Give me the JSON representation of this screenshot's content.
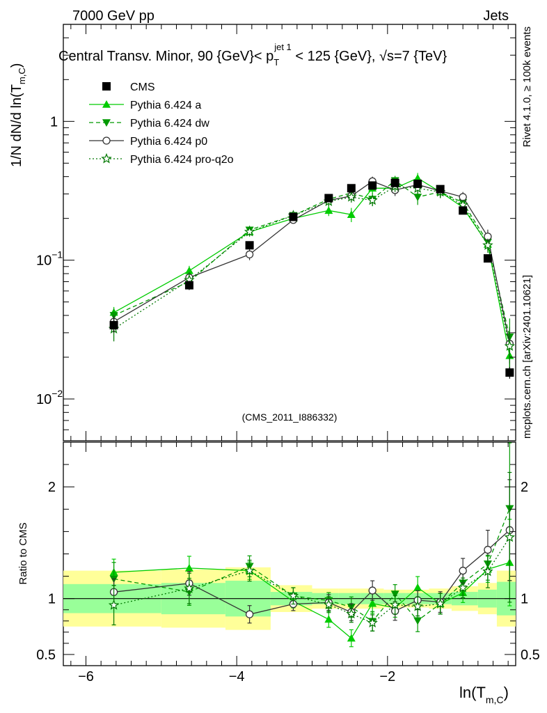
{
  "header": {
    "left": "7000 GeV pp",
    "right": "Jets"
  },
  "side_labels": {
    "rivet": "Rivet 4.1.0, ≥ 100k events",
    "mcplots": "mcplots.cern.ch [arXiv:2401.10621]"
  },
  "chart_data": {
    "type": "line",
    "title_parts": {
      "pre": "Central Transv. Minor, 90 {GeV}< p",
      "sup": "jet 1",
      "sub": "T",
      "post": " < 125 {GeV}, √s=7 {TeV}"
    },
    "analysis_tag": "(CMS_2011_I886332)",
    "ylabel": {
      "main": "1/N    dN/d ln(T",
      "sub": "m,C",
      "close": ")"
    },
    "xlabel": {
      "main": "ln(T",
      "sub": "m,C",
      "close": ")"
    },
    "ratio_ylabel": "Ratio to CMS",
    "xlim": [
      -6.3,
      -0.3
    ],
    "ylim_main": [
      0.005,
      5.0
    ],
    "ylim_ratio": [
      0.4,
      2.4
    ],
    "x_ticks": [
      -6,
      -4,
      -2
    ],
    "x_tick_labels": [
      "−6",
      "−4",
      "−2"
    ],
    "main_y_tick_labels": [
      {
        "base": "10",
        "exp": "−2",
        "value": 0.01
      },
      {
        "base": "10",
        "exp": "−1",
        "value": 0.1
      },
      {
        "base": "1",
        "exp": "",
        "value": 1
      }
    ],
    "ratio_y_ticks": [
      2,
      1,
      0.5
    ],
    "ratio_y_tick_labels": [
      "2",
      "1",
      "0.5"
    ],
    "x": [
      -5.63,
      -4.63,
      -3.83,
      -3.25,
      -2.78,
      -2.48,
      -2.2,
      -1.9,
      -1.6,
      -1.3,
      -1.0,
      -0.67,
      -0.38
    ],
    "bin_edges": [
      -6.3,
      -5.0,
      -4.15,
      -3.55,
      -3.0,
      -2.65,
      -2.35,
      -2.05,
      -1.75,
      -1.45,
      -1.15,
      -0.8,
      -0.55,
      -0.25
    ],
    "band_inner": [
      0.13,
      0.14,
      0.16,
      0.06,
      0.05,
      0.05,
      0.05,
      0.05,
      0.05,
      0.05,
      0.06,
      0.08,
      0.15
    ],
    "band_outer": [
      0.25,
      0.26,
      0.28,
      0.12,
      0.09,
      0.09,
      0.09,
      0.08,
      0.08,
      0.09,
      0.11,
      0.14,
      0.25
    ],
    "series": [
      {
        "name": "CMS",
        "style": "data",
        "color": "#000000",
        "values": [
          0.034,
          0.066,
          0.128,
          0.205,
          0.28,
          0.33,
          0.345,
          0.36,
          0.355,
          0.325,
          0.228,
          0.103,
          0.0155
        ],
        "errors": [
          0.004,
          0.005,
          0.008,
          0.01,
          0.012,
          0.012,
          0.012,
          0.012,
          0.012,
          0.012,
          0.01,
          0.006,
          0.0015
        ]
      },
      {
        "name": "Pythia 6.424 a",
        "style": "solid",
        "marker": "triangle-up",
        "color": "#00cc00",
        "values": [
          0.042,
          0.084,
          0.16,
          0.2,
          0.228,
          0.213,
          0.33,
          0.33,
          0.39,
          0.31,
          0.24,
          0.13,
          0.0205
        ],
        "errors": [
          0.004,
          0.007,
          0.01,
          0.012,
          0.02,
          0.025,
          0.03,
          0.03,
          0.035,
          0.03,
          0.02,
          0.012,
          0.006
        ]
      },
      {
        "name": "Pythia 6.424 dw",
        "style": "dashed",
        "marker": "triangle-down",
        "color": "#009900",
        "values": [
          0.04,
          0.07,
          0.165,
          0.21,
          0.275,
          0.305,
          0.275,
          0.375,
          0.285,
          0.31,
          0.26,
          0.135,
          0.028
        ],
        "errors": [
          0.005,
          0.008,
          0.012,
          0.015,
          0.02,
          0.03,
          0.03,
          0.03,
          0.035,
          0.03,
          0.025,
          0.015,
          0.01
        ]
      },
      {
        "name": "Pythia 6.424 p0",
        "style": "solid",
        "marker": "circle-open",
        "color": "#333333",
        "values": [
          0.036,
          0.075,
          0.11,
          0.195,
          0.27,
          0.29,
          0.37,
          0.32,
          0.35,
          0.315,
          0.285,
          0.148,
          0.025
        ],
        "errors": [
          0.004,
          0.007,
          0.01,
          0.012,
          0.02,
          0.025,
          0.03,
          0.03,
          0.03,
          0.03,
          0.025,
          0.018,
          0.007
        ]
      },
      {
        "name": "Pythia 6.424 pro-q2o",
        "style": "dotted",
        "marker": "star-open",
        "color": "#007700",
        "values": [
          0.032,
          0.072,
          0.16,
          0.21,
          0.265,
          0.285,
          0.27,
          0.34,
          0.33,
          0.31,
          0.25,
          0.128,
          0.024
        ],
        "errors": [
          0.006,
          0.009,
          0.012,
          0.015,
          0.02,
          0.025,
          0.025,
          0.03,
          0.03,
          0.03,
          0.02,
          0.015,
          0.009
        ]
      }
    ]
  }
}
